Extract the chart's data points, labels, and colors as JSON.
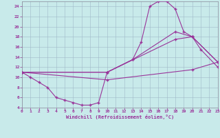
{
  "xlabel": "Windchill (Refroidissement éolien,°C)",
  "bg_color": "#c8eaea",
  "grid_color": "#a0b8c8",
  "line_color": "#993399",
  "xlim": [
    0,
    23
  ],
  "ylim": [
    4,
    25
  ],
  "ytick_vals": [
    4,
    6,
    8,
    10,
    12,
    14,
    16,
    18,
    20,
    22,
    24
  ],
  "xtick_vals": [
    0,
    1,
    2,
    3,
    4,
    5,
    6,
    7,
    8,
    9,
    10,
    11,
    12,
    13,
    14,
    15,
    16,
    17,
    18,
    19,
    20,
    21,
    22,
    23
  ],
  "line1_x": [
    0,
    1,
    2,
    3,
    4,
    5,
    6,
    7,
    8,
    9,
    10,
    13,
    14,
    15,
    16,
    17,
    18,
    19,
    20,
    21,
    23
  ],
  "line1_y": [
    11,
    10,
    9,
    8,
    6,
    5.5,
    5,
    4.5,
    4.5,
    5,
    11,
    13.5,
    17,
    24,
    25,
    25,
    23.5,
    19,
    18,
    15.5,
    12
  ],
  "line2_x": [
    0,
    10,
    13,
    18,
    20,
    23
  ],
  "line2_y": [
    11,
    11,
    13.5,
    19,
    18,
    13
  ],
  "line3_x": [
    0,
    10,
    18,
    20,
    23
  ],
  "line3_y": [
    11,
    11,
    17.5,
    18,
    13
  ],
  "line4_x": [
    0,
    10,
    20,
    23
  ],
  "line4_y": [
    11,
    9.5,
    11.5,
    13
  ]
}
